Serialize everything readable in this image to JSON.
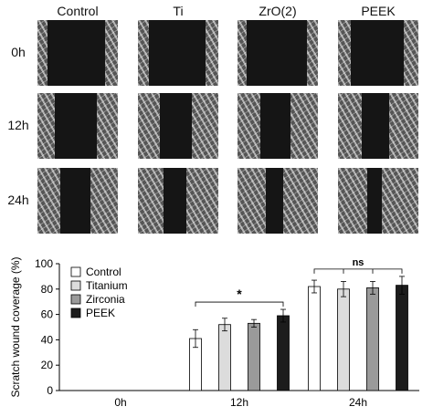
{
  "figure": {
    "columns": [
      "Control",
      "Ti",
      "ZrO(2)",
      "PEEK"
    ],
    "rows": [
      "0h",
      "12h",
      "24h"
    ],
    "panel_open_fraction": [
      [
        0.72,
        0.7,
        0.75,
        0.66
      ],
      [
        0.52,
        0.4,
        0.38,
        0.34
      ],
      [
        0.38,
        0.28,
        0.22,
        0.18
      ]
    ]
  },
  "chart_data": {
    "type": "bar",
    "categories": [
      "0h",
      "12h",
      "24h"
    ],
    "ylabel": "Scratch wound coverage (%)",
    "xlabel": "",
    "ylim": [
      0,
      100
    ],
    "yticks": [
      0,
      20,
      40,
      60,
      80,
      100
    ],
    "legend_position": "top-left",
    "series": [
      {
        "name": "Control",
        "values": [
          null,
          41,
          82
        ],
        "errors": [
          null,
          7,
          5
        ],
        "color": "#ffffff"
      },
      {
        "name": "Titanium",
        "values": [
          null,
          52,
          80
        ],
        "errors": [
          null,
          5,
          6
        ],
        "color": "#dcdcdc"
      },
      {
        "name": "Zirconia",
        "values": [
          null,
          53,
          81
        ],
        "errors": [
          null,
          3,
          5
        ],
        "color": "#9a9a9a"
      },
      {
        "name": "PEEK",
        "values": [
          null,
          59,
          83
        ],
        "errors": [
          null,
          5,
          7
        ],
        "color": "#1c1c1c"
      }
    ],
    "annotations": [
      {
        "category": "12h",
        "text": "*"
      },
      {
        "category": "24h",
        "text": "ns"
      }
    ]
  }
}
